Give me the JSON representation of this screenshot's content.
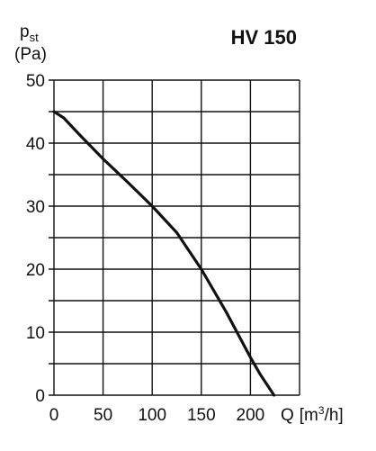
{
  "chart_data": {
    "type": "line",
    "title": "HV 150",
    "ylabel": {
      "symbol": "p",
      "subscript": "st",
      "unit": "(Pa)"
    },
    "xlabel": {
      "symbol": "Q",
      "unit_prefix": "[m",
      "unit_exp": "3",
      "unit_suffix": "/h]"
    },
    "xlim": [
      0,
      250
    ],
    "ylim": [
      0,
      50
    ],
    "x_ticks": [
      0,
      50,
      100,
      150,
      200
    ],
    "y_ticks": [
      0,
      10,
      20,
      30,
      40,
      50
    ],
    "x_grid": [
      0,
      50,
      100,
      150,
      200,
      250
    ],
    "y_grid": [
      0,
      5,
      10,
      15,
      20,
      25,
      30,
      35,
      40,
      45,
      50
    ],
    "grid": true,
    "series": [
      {
        "color": "#111111",
        "x": [
          0,
          10,
          25,
          50,
          75,
          100,
          125,
          150,
          175,
          200,
          210,
          224
        ],
        "y": [
          45,
          44,
          41.5,
          37.5,
          33.8,
          30,
          25.8,
          20,
          13.3,
          6,
          3.3,
          0
        ]
      }
    ]
  }
}
